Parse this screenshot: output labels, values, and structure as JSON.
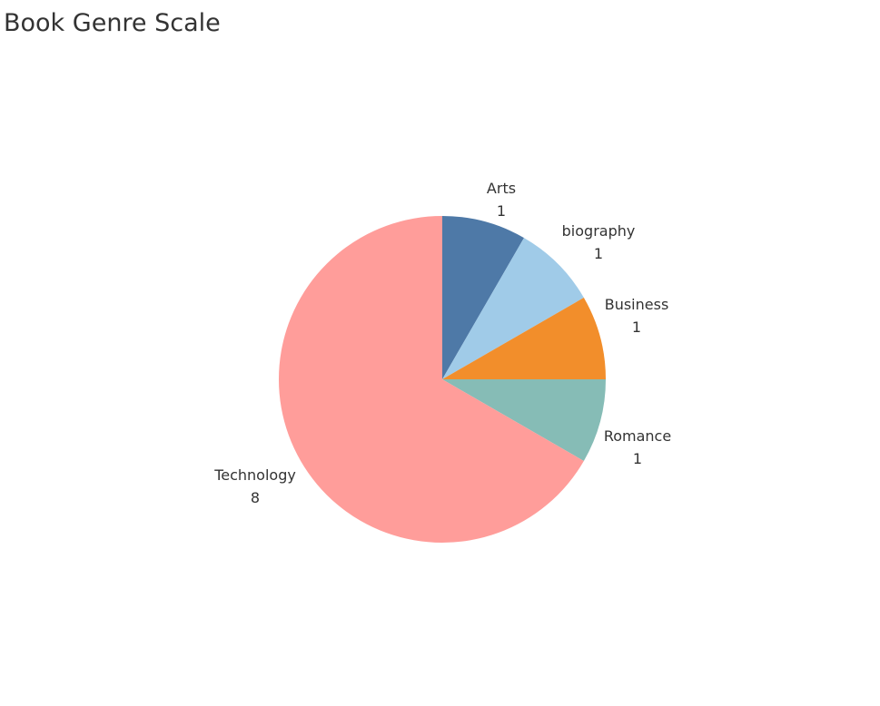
{
  "chart_data": {
    "type": "pie",
    "title": "Book Genre Scale",
    "categories": [
      "Arts",
      "biography",
      "Business",
      "Romance",
      "Technology"
    ],
    "values": [
      1,
      1,
      1,
      1,
      8
    ],
    "colors": [
      "#4e79a7",
      "#a0cbe8",
      "#f28e2b",
      "#86bcb6",
      "#ff9d9a"
    ],
    "labels": [
      {
        "name": "Arts",
        "value": "1"
      },
      {
        "name": "biography",
        "value": "1"
      },
      {
        "name": "Business",
        "value": "1"
      },
      {
        "name": "Romance",
        "value": "1"
      },
      {
        "name": "Technology",
        "value": "8"
      }
    ]
  }
}
